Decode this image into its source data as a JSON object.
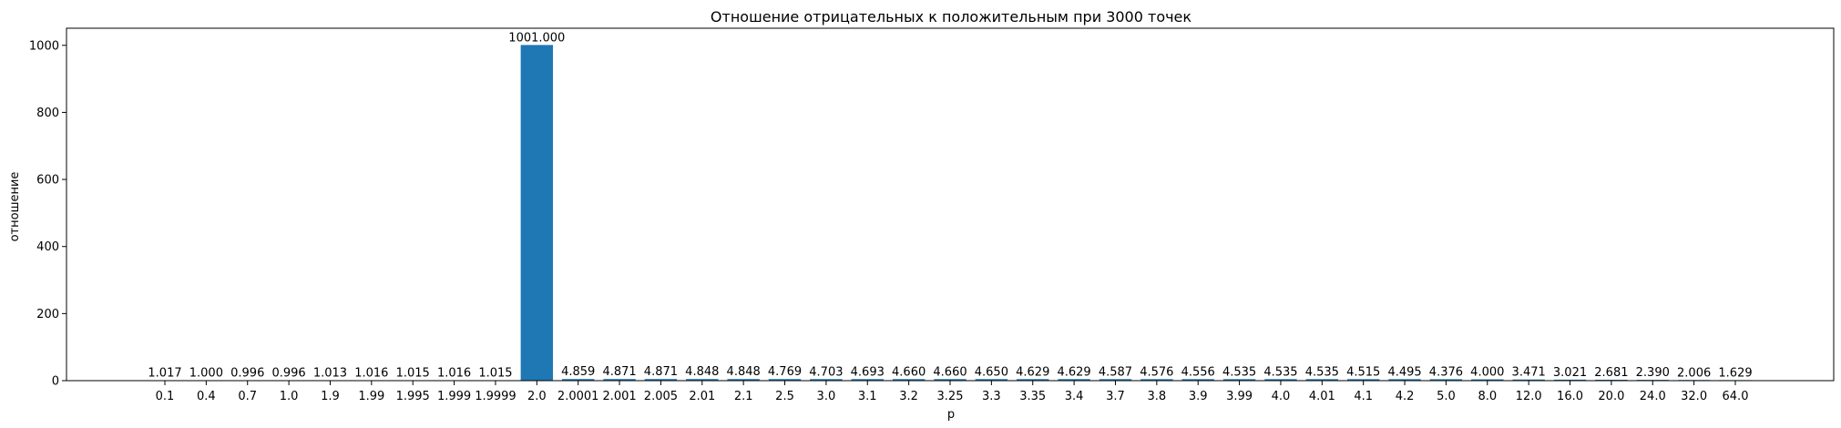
{
  "chart_data": {
    "type": "bar",
    "title": "Отношение отрицательных к положительным при 3000 точек",
    "xlabel": "p",
    "ylabel": "отношение",
    "ylim": [
      0,
      1051
    ],
    "yticks": [
      0,
      200,
      400,
      600,
      800,
      1000
    ],
    "grid": false,
    "bar_color": "#1f77b4",
    "categories": [
      "0.1",
      "0.4",
      "0.7",
      "1.0",
      "1.9",
      "1.99",
      "1.995",
      "1.999",
      "1.9999",
      "2.0",
      "2.0001",
      "2.001",
      "2.005",
      "2.01",
      "2.1",
      "2.5",
      "3.0",
      "3.1",
      "3.2",
      "3.25",
      "3.3",
      "3.35",
      "3.4",
      "3.7",
      "3.8",
      "3.9",
      "3.99",
      "4.0",
      "4.01",
      "4.1",
      "4.2",
      "5.0",
      "8.0",
      "12.0",
      "16.0",
      "20.0",
      "24.0",
      "32.0",
      "64.0"
    ],
    "values": [
      1.017,
      1.0,
      0.996,
      0.996,
      1.013,
      1.016,
      1.015,
      1.016,
      1.015,
      1001.0,
      4.859,
      4.871,
      4.871,
      4.848,
      4.848,
      4.769,
      4.703,
      4.693,
      4.66,
      4.66,
      4.65,
      4.629,
      4.629,
      4.587,
      4.576,
      4.556,
      4.535,
      4.535,
      4.535,
      4.515,
      4.495,
      4.376,
      4.0,
      3.471,
      3.021,
      2.681,
      2.39,
      2.006,
      1.629
    ],
    "data_labels": [
      "1.017",
      "1.000",
      "0.996",
      "0.996",
      "1.013",
      "1.016",
      "1.015",
      "1.016",
      "1.015",
      "1001.000",
      "4.859",
      "4.871",
      "4.871",
      "4.848",
      "4.848",
      "4.769",
      "4.703",
      "4.693",
      "4.660",
      "4.660",
      "4.650",
      "4.629",
      "4.629",
      "4.587",
      "4.576",
      "4.556",
      "4.535",
      "4.535",
      "4.535",
      "4.515",
      "4.495",
      "4.376",
      "4.000",
      "3.471",
      "3.021",
      "2.681",
      "2.390",
      "2.006",
      "1.629"
    ]
  }
}
